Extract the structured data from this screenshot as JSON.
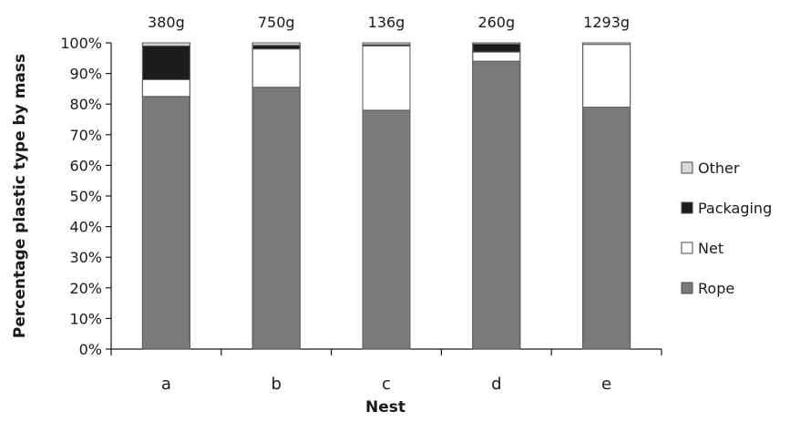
{
  "chart_data": {
    "type": "bar",
    "stacked": true,
    "title": "",
    "xlabel": "Nest",
    "ylabel": "Percentage plastic type by mass",
    "ylim": [
      0,
      100
    ],
    "ytick_step": 10,
    "y_tick_suffix": "%",
    "categories": [
      "a",
      "b",
      "c",
      "d",
      "e"
    ],
    "totals": [
      "380g",
      "750g",
      "136g",
      "260g",
      "1293g"
    ],
    "series": [
      {
        "name": "Rope",
        "color": "#7a7a7a",
        "values": [
          82.5,
          85.5,
          78,
          94,
          79
        ]
      },
      {
        "name": "Net",
        "color": "#ffffff",
        "values": [
          5.5,
          12.5,
          21,
          3,
          20.5
        ]
      },
      {
        "name": "Packaging",
        "color": "#1c1c1c",
        "values": [
          11,
          1.2,
          0.4,
          2.6,
          0
        ]
      },
      {
        "name": "Other",
        "color": "#d9d9d9",
        "values": [
          1,
          0.8,
          0.6,
          0.4,
          0.5
        ]
      }
    ],
    "legend_order": [
      "Other",
      "Packaging",
      "Net",
      "Rope"
    ],
    "legend_position": "right",
    "grid": false
  }
}
